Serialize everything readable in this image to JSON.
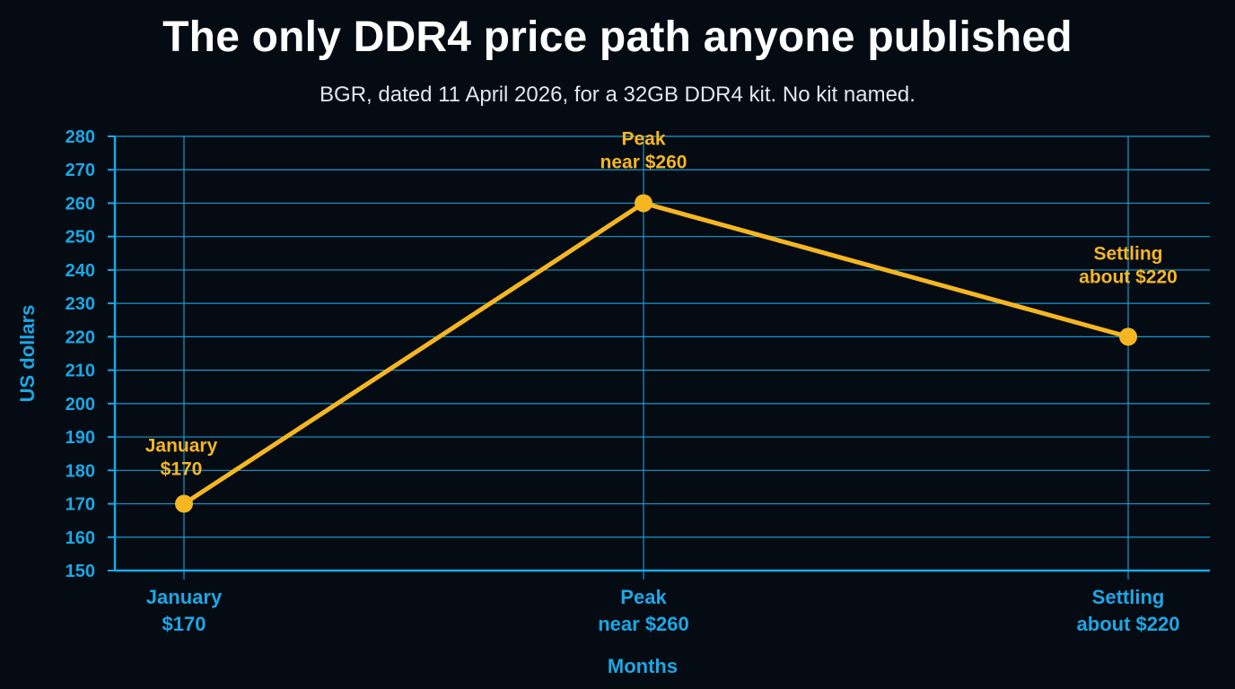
{
  "chart_data": {
    "type": "line",
    "title": "The only DDR4 price path anyone published",
    "subtitle": "BGR, dated 11 April 2026, for a 32GB DDR4 kit. No kit named.",
    "xlabel": "Months",
    "ylabel": "US dollars",
    "categories": [
      [
        "January",
        "$170"
      ],
      [
        "Peak",
        "near $260"
      ],
      [
        "Settling",
        "about $220"
      ]
    ],
    "values": [
      170,
      260,
      220
    ],
    "point_labels": [
      [
        "January",
        "$170"
      ],
      [
        "Peak",
        "near $260"
      ],
      [
        "Settling",
        "about $220"
      ]
    ],
    "ylim": [
      150,
      280
    ],
    "yticks": [
      150,
      160,
      170,
      180,
      190,
      200,
      210,
      220,
      230,
      240,
      250,
      260,
      270,
      280
    ],
    "grid": true,
    "colors": {
      "background": "#050b12",
      "grid": "#1aa8e6",
      "axis_text": "#1aa8e6",
      "line": "#f5b622",
      "title": "#ffffff",
      "subtitle": "#dfe7ef"
    }
  }
}
